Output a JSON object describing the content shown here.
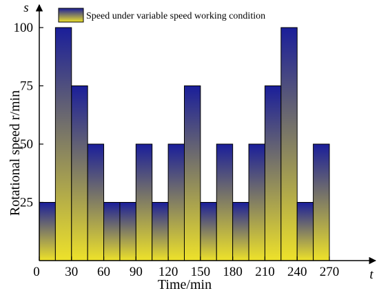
{
  "chart_data": {
    "type": "bar",
    "title": "",
    "xlabel": "Time/min",
    "ylabel": "Rotational speed r/min",
    "x_axis_variable": "t",
    "y_axis_variable": "s",
    "xlim": [
      0,
      285
    ],
    "ylim": [
      0,
      110
    ],
    "x_ticks": [
      0,
      30,
      60,
      90,
      120,
      150,
      180,
      210,
      240,
      270
    ],
    "y_ticks": [
      25,
      50,
      75,
      100
    ],
    "bar_width": 15,
    "bars": [
      {
        "x_start": 0,
        "value": 25
      },
      {
        "x_start": 15,
        "value": 100
      },
      {
        "x_start": 30,
        "value": 75
      },
      {
        "x_start": 45,
        "value": 50
      },
      {
        "x_start": 60,
        "value": 25
      },
      {
        "x_start": 75,
        "value": 25
      },
      {
        "x_start": 90,
        "value": 50
      },
      {
        "x_start": 105,
        "value": 25
      },
      {
        "x_start": 120,
        "value": 50
      },
      {
        "x_start": 135,
        "value": 75
      },
      {
        "x_start": 150,
        "value": 25
      },
      {
        "x_start": 165,
        "value": 50
      },
      {
        "x_start": 180,
        "value": 25
      },
      {
        "x_start": 195,
        "value": 50
      },
      {
        "x_start": 210,
        "value": 75
      },
      {
        "x_start": 225,
        "value": 100
      },
      {
        "x_start": 240,
        "value": 25
      },
      {
        "x_start": 255,
        "value": 50
      }
    ],
    "series": [
      {
        "name": "Speed under variable speed working condition"
      }
    ],
    "legend_position": "top-left",
    "grid": false,
    "colors": {
      "gradient_top": "#1a1e9a",
      "gradient_bottom": "#eee22a",
      "bar_edge": "#000000"
    }
  }
}
